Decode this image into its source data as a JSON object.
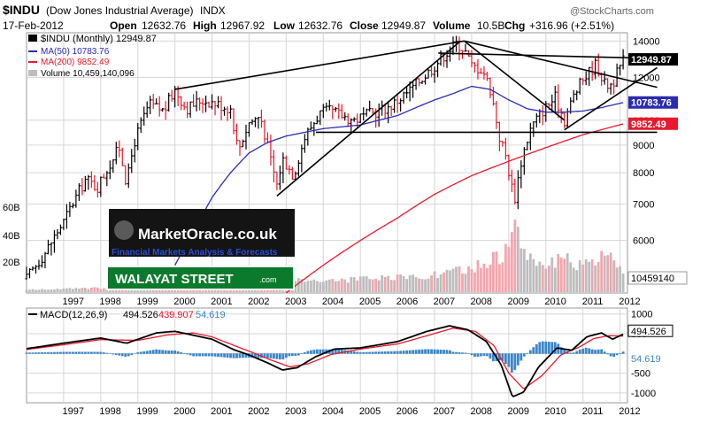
{
  "header": {
    "symbol": "$INDU",
    "name": "(Dow Jones Industrial Average)",
    "exchange": "INDX",
    "date": "17-Feb-2012",
    "open_label": "Open",
    "open": "12632.76",
    "high_label": "High",
    "high": "12967.92",
    "low_label": "Low",
    "low": "12632.76",
    "close_label": "Close",
    "close": "12949.87",
    "volume_label": "Volume",
    "volume": "10.5B",
    "change_label": "Chg",
    "change": "+316.96 (+2.51%)",
    "source": "@StockCharts.com"
  },
  "legend": {
    "price": "$INDU (Monthly) 12949.87",
    "ma50": "MA(50) 10783.76",
    "ma200": "MA(200) 9852.49",
    "volume": "Volume 10,459,140,096"
  },
  "macd_legend": {
    "label": "MACD(12,26,9)",
    "macd": "494.526",
    "signal": "439.907",
    "hist": "54.619"
  },
  "watermark": {
    "brand": "MarketOracle.co.uk",
    "tagline": "Financial Markets Analysis & Forecasts",
    "street": "WALAYAT STREET",
    "street_domain": ".com"
  },
  "colors": {
    "up": "#000000",
    "down": "#e8192c",
    "ma50": "#2b2bb0",
    "ma200": "#e8192c",
    "macd": "#000000",
    "signal": "#e8192c",
    "hist": "#3b86c8",
    "volume_up": "#bdbdbd",
    "volume_down": "#f2a6ae",
    "grid": "#d6d6d6",
    "badge_price": "#000000",
    "badge_ma50": "#2b2bb0",
    "badge_ma200": "#e8192c"
  },
  "chart_data": {
    "type": "line",
    "x_range": [
      1996,
      2012.2
    ],
    "x_ticks": [
      "1997",
      "1998",
      "1999",
      "2000",
      "2001",
      "2002",
      "2003",
      "2004",
      "2005",
      "2006",
      "2007",
      "2008",
      "2009",
      "2010",
      "2011",
      "2012"
    ],
    "price_ylim": [
      4800,
      14500
    ],
    "price_log_scale": true,
    "y_ticks": [
      6000,
      7000,
      8000,
      9000,
      10000,
      12000,
      14000
    ],
    "volume_ticks": [
      "20B",
      "40B",
      "60B"
    ],
    "volume_last": "10459140",
    "badges": {
      "price": "12949.87",
      "ma50": "10783.76",
      "ma200": "9852.49"
    },
    "macd_ylim": [
      -1250,
      1150
    ],
    "macd_ticks": [
      -1000,
      -500,
      0,
      500,
      1000
    ],
    "macd_badges": {
      "macd": "494.526",
      "hist": "54.619"
    },
    "grid": true,
    "price_anchors": [
      [
        1996.0,
        5100
      ],
      [
        1996.5,
        5700
      ],
      [
        1997.0,
        6500
      ],
      [
        1997.6,
        7800
      ],
      [
        1997.9,
        7500
      ],
      [
        1998.5,
        8900
      ],
      [
        1998.7,
        7600
      ],
      [
        1998.9,
        9100
      ],
      [
        1999.3,
        10700
      ],
      [
        1999.7,
        10400
      ],
      [
        2000.0,
        11400
      ],
      [
        2000.3,
        10500
      ],
      [
        2000.7,
        10900
      ],
      [
        2001.0,
        10800
      ],
      [
        2001.5,
        10500
      ],
      [
        2001.7,
        8800
      ],
      [
        2002.0,
        9900
      ],
      [
        2002.3,
        10200
      ],
      [
        2002.55,
        8600
      ],
      [
        2002.75,
        7600
      ],
      [
        2002.9,
        8500
      ],
      [
        2003.2,
        7900
      ],
      [
        2003.5,
        9300
      ],
      [
        2003.9,
        10300
      ],
      [
        2004.2,
        10400
      ],
      [
        2004.8,
        10000
      ],
      [
        2005.3,
        10300
      ],
      [
        2005.8,
        10600
      ],
      [
        2006.3,
        11300
      ],
      [
        2006.9,
        12400
      ],
      [
        2007.3,
        13300
      ],
      [
        2007.6,
        13900
      ],
      [
        2007.8,
        13500
      ],
      [
        2008.0,
        12600
      ],
      [
        2008.3,
        12400
      ],
      [
        2008.5,
        11400
      ],
      [
        2008.75,
        9300
      ],
      [
        2008.9,
        8700
      ],
      [
        2009.15,
        7100
      ],
      [
        2009.35,
        8500
      ],
      [
        2009.6,
        9700
      ],
      [
        2009.9,
        10400
      ],
      [
        2010.25,
        11000
      ],
      [
        2010.5,
        10000
      ],
      [
        2010.75,
        11100
      ],
      [
        2011.0,
        11900
      ],
      [
        2011.35,
        12700
      ],
      [
        2011.6,
        11600
      ],
      [
        2011.8,
        11700
      ],
      [
        2012.1,
        12950
      ]
    ],
    "ma50_anchors": [
      [
        2000.0,
        5400
      ],
      [
        2000.5,
        6200
      ],
      [
        2001.0,
        7200
      ],
      [
        2001.5,
        8000
      ],
      [
        2002.0,
        8700
      ],
      [
        2002.5,
        9100
      ],
      [
        2003.0,
        9350
      ],
      [
        2003.5,
        9500
      ],
      [
        2004.0,
        9650
      ],
      [
        2005.0,
        9800
      ],
      [
        2006.0,
        10200
      ],
      [
        2007.0,
        10900
      ],
      [
        2007.5,
        11200
      ],
      [
        2008.0,
        11550
      ],
      [
        2008.5,
        11400
      ],
      [
        2009.0,
        10900
      ],
      [
        2009.5,
        10500
      ],
      [
        2010.0,
        10350
      ],
      [
        2010.5,
        10350
      ],
      [
        2011.0,
        10400
      ],
      [
        2011.5,
        10550
      ],
      [
        2012.1,
        10784
      ]
    ],
    "ma200_anchors": [
      [
        2003.0,
        4800
      ],
      [
        2004.0,
        5400
      ],
      [
        2005.0,
        6000
      ],
      [
        2006.0,
        6600
      ],
      [
        2007.0,
        7300
      ],
      [
        2008.0,
        7900
      ],
      [
        2009.0,
        8400
      ],
      [
        2010.0,
        8900
      ],
      [
        2011.0,
        9400
      ],
      [
        2012.1,
        9852
      ]
    ],
    "macd_anchors": [
      [
        1996.0,
        120
      ],
      [
        1997.0,
        260
      ],
      [
        1998.0,
        390
      ],
      [
        1998.7,
        260
      ],
      [
        1999.5,
        520
      ],
      [
        2000.0,
        560
      ],
      [
        2000.5,
        460
      ],
      [
        2001.0,
        360
      ],
      [
        2001.6,
        90
      ],
      [
        2002.0,
        -40
      ],
      [
        2002.5,
        -240
      ],
      [
        2002.9,
        -420
      ],
      [
        2003.3,
        -360
      ],
      [
        2003.8,
        -80
      ],
      [
        2004.3,
        110
      ],
      [
        2005.0,
        140
      ],
      [
        2006.0,
        300
      ],
      [
        2006.8,
        560
      ],
      [
        2007.4,
        700
      ],
      [
        2007.9,
        600
      ],
      [
        2008.4,
        300
      ],
      [
        2008.8,
        -300
      ],
      [
        2009.1,
        -1100
      ],
      [
        2009.4,
        -980
      ],
      [
        2009.8,
        -350
      ],
      [
        2010.3,
        140
      ],
      [
        2010.7,
        80
      ],
      [
        2011.1,
        420
      ],
      [
        2011.5,
        520
      ],
      [
        2011.8,
        360
      ],
      [
        2012.1,
        495
      ]
    ],
    "signal_anchors": [
      [
        1996.0,
        100
      ],
      [
        1997.0,
        220
      ],
      [
        1998.0,
        350
      ],
      [
        1999.0,
        330
      ],
      [
        1999.8,
        470
      ],
      [
        2000.5,
        520
      ],
      [
        2001.0,
        420
      ],
      [
        2001.6,
        200
      ],
      [
        2002.1,
        20
      ],
      [
        2002.6,
        -170
      ],
      [
        2003.1,
        -340
      ],
      [
        2003.6,
        -260
      ],
      [
        2004.2,
        -30
      ],
      [
        2005.0,
        110
      ],
      [
        2006.0,
        240
      ],
      [
        2006.8,
        450
      ],
      [
        2007.5,
        640
      ],
      [
        2008.1,
        560
      ],
      [
        2008.6,
        200
      ],
      [
        2009.0,
        -500
      ],
      [
        2009.4,
        -900
      ],
      [
        2009.9,
        -560
      ],
      [
        2010.4,
        -40
      ],
      [
        2010.9,
        160
      ],
      [
        2011.3,
        380
      ],
      [
        2011.7,
        450
      ],
      [
        2012.1,
        440
      ]
    ],
    "volume_anchors": [
      [
        1996.0,
        1.0
      ],
      [
        1998.0,
        1.8
      ],
      [
        2000.0,
        3.0
      ],
      [
        2001.0,
        3.5
      ],
      [
        2002.0,
        4.8
      ],
      [
        2003.0,
        5.5
      ],
      [
        2004.0,
        5.0
      ],
      [
        2005.0,
        5.5
      ],
      [
        2006.0,
        6.2
      ],
      [
        2007.0,
        7.5
      ],
      [
        2008.0,
        10.0
      ],
      [
        2008.9,
        17.0
      ],
      [
        2009.15,
        27.0
      ],
      [
        2009.5,
        16.0
      ],
      [
        2010.0,
        12.0
      ],
      [
        2010.5,
        14.0
      ],
      [
        2011.0,
        11.0
      ],
      [
        2011.6,
        16.0
      ],
      [
        2012.1,
        10.5
      ]
    ],
    "trendlines": [
      [
        [
          2000.0,
          11400
        ],
        [
          2007.8,
          14000
        ]
      ],
      [
        [
          2002.75,
          7250
        ],
        [
          2007.7,
          14000
        ]
      ],
      [
        [
          2007.8,
          14000
        ],
        [
          2013.0,
          11500
        ]
      ],
      [
        [
          2007.8,
          14000
        ],
        [
          2010.5,
          10000
        ]
      ],
      [
        [
          2007.1,
          13300
        ],
        [
          2013.0,
          13000
        ]
      ],
      [
        [
          2003.8,
          9500
        ],
        [
          2013.0,
          9500
        ]
      ],
      [
        [
          2010.5,
          9600
        ],
        [
          2013.0,
          12500
        ]
      ]
    ]
  }
}
